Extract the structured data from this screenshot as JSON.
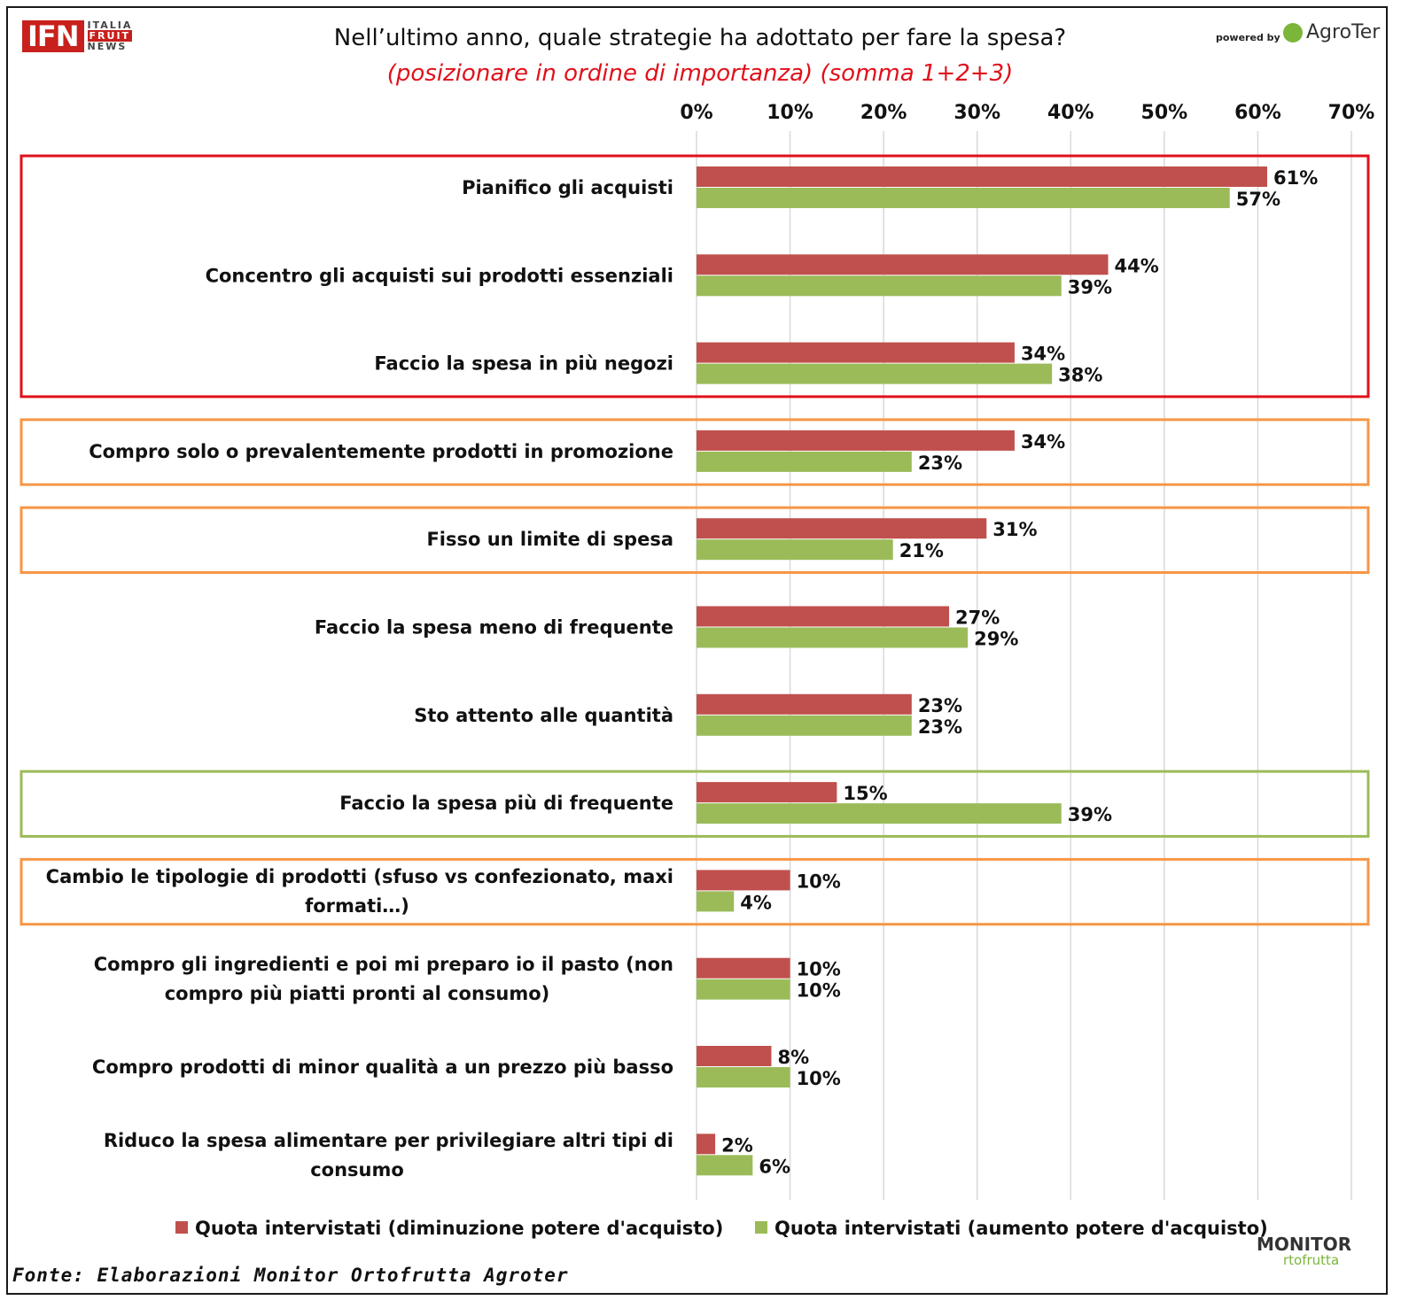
{
  "header": {
    "title": "Nell’ultimo anno, quale strategie ha adottato per fare la spesa?",
    "subtitle": "(posizionare in ordine di importanza) (somma 1+2+3)"
  },
  "logos": {
    "ifn_main": "IFN",
    "ifn_line1": "ITALIA",
    "ifn_line2": "FRUIT",
    "ifn_line3": "NEWS",
    "powered_by": "powered by",
    "agroter": "AgroTer",
    "monitor_main": "MONITOR",
    "monitor_sub": "rtofrutta"
  },
  "footer": {
    "source": "Fonte: Elaborazioni Monitor Ortofrutta Agroter"
  },
  "colors": {
    "series_decrease": "#c0504d",
    "series_increase": "#9bbb59",
    "box_red": "#e0101a",
    "box_orange": "#f79646",
    "box_green": "#9bbb59",
    "title_red": "#e0101a"
  },
  "chart_data": {
    "type": "bar",
    "orientation": "horizontal",
    "categories": [
      "Pianifico gli acquisti",
      "Concentro gli acquisti sui prodotti essenziali",
      "Faccio la spesa in più negozi",
      "Compro solo o prevalentemente prodotti in promozione",
      "Fisso un limite di spesa",
      "Faccio la spesa meno di frequente",
      "Sto attento alle quantità",
      "Faccio la spesa più di frequente",
      "Cambio le tipologie di prodotti (sfuso vs confezionato, maxi formati…)",
      "Compro gli ingredienti e poi mi preparo io il pasto (non compro più piatti pronti al consumo)",
      "Compro prodotti di minor qualità a un prezzo più basso",
      "Riduco la spesa alimentare per privilegiare altri tipi di consumo"
    ],
    "series": [
      {
        "name": "Quota intervistati (diminuzione potere d'acquisto)",
        "values": [
          61,
          44,
          34,
          34,
          31,
          27,
          23,
          15,
          10,
          10,
          8,
          2
        ],
        "labels": [
          "61%",
          "44%",
          "34%",
          "34%",
          "31%",
          "27%",
          "23%",
          "15%",
          "10%",
          "10%",
          "8%",
          "2%"
        ]
      },
      {
        "name": "Quota intervistati (aumento potere d'acquisto)",
        "values": [
          57,
          39,
          38,
          23,
          21,
          29,
          23,
          39,
          4,
          10,
          10,
          6
        ],
        "labels": [
          "57%",
          "39%",
          "38%",
          "23%",
          "21%",
          "29%",
          "23%",
          "39%",
          "4%",
          "10%",
          "10%",
          "6%"
        ]
      }
    ],
    "xlim": [
      0,
      70
    ],
    "x_ticks": [
      "0%",
      "10%",
      "20%",
      "30%",
      "40%",
      "50%",
      "60%",
      "70%"
    ],
    "grid": true,
    "legend_position": "bottom",
    "highlight_boxes": [
      {
        "color": "red",
        "categories": [
          0,
          1,
          2
        ]
      },
      {
        "color": "orange",
        "categories": [
          3
        ]
      },
      {
        "color": "orange",
        "categories": [
          4
        ]
      },
      {
        "color": "green",
        "categories": [
          7
        ]
      },
      {
        "color": "orange",
        "categories": [
          8
        ]
      }
    ]
  }
}
